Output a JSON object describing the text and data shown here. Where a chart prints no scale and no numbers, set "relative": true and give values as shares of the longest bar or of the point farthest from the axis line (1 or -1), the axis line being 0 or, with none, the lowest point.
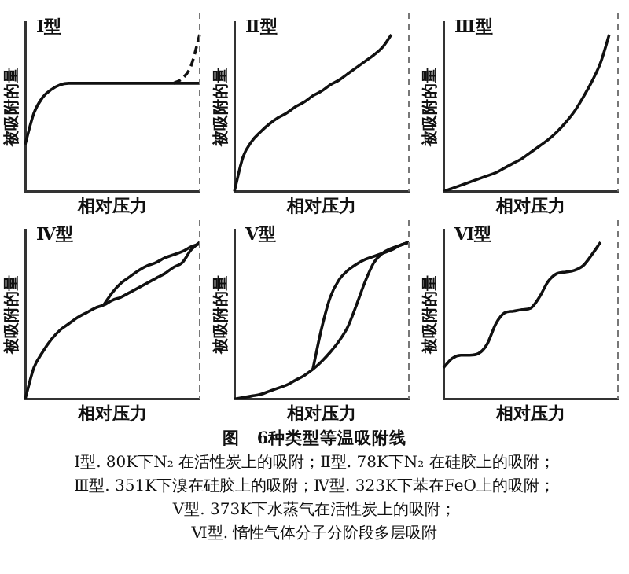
{
  "chart_data": [
    {
      "type": "line",
      "title": "Ⅰ型",
      "xlabel": "相对压力",
      "ylabel": "被吸附的量",
      "relative": true,
      "categories": [
        null,
        null,
        null,
        null,
        null,
        null,
        null,
        null,
        null,
        null,
        null,
        null,
        null,
        null,
        null,
        null,
        null,
        null,
        null,
        null,
        null
      ],
      "series": [
        {
          "color": "#111111",
          "values": [
            0.3,
            0.5,
            0.6,
            0.65,
            0.68,
            0.69,
            0.69,
            0.69,
            0.69,
            0.69,
            0.69,
            0.69,
            0.69,
            0.69,
            0.69,
            0.69,
            0.69,
            0.69,
            0.69,
            0.69,
            0.69
          ]
        },
        {
          "color": "#111111",
          "line_style": "dashed",
          "values": [
            null,
            null,
            null,
            null,
            null,
            null,
            null,
            null,
            null,
            null,
            null,
            null,
            null,
            null,
            null,
            null,
            null,
            0.69,
            0.72,
            0.8,
            1.0
          ]
        }
      ]
    },
    {
      "type": "line",
      "title": "Ⅱ型",
      "xlabel": "相对压力",
      "ylabel": "被吸附的量",
      "relative": true,
      "categories": [
        null,
        null,
        null,
        null,
        null,
        null,
        null,
        null,
        null,
        null,
        null,
        null,
        null,
        null,
        null,
        null,
        null,
        null,
        null,
        null,
        null
      ],
      "series": [
        {
          "color": "#111111",
          "values": [
            0,
            0.22,
            0.32,
            0.38,
            0.43,
            0.47,
            0.5,
            0.54,
            0.57,
            0.61,
            0.64,
            0.68,
            0.71,
            0.75,
            0.79,
            0.83,
            0.87,
            0.92,
            1.0,
            null,
            null
          ]
        }
      ]
    },
    {
      "type": "line",
      "title": "Ⅲ型",
      "xlabel": "相对压力",
      "ylabel": "被吸附的量",
      "relative": true,
      "categories": [
        null,
        null,
        null,
        null,
        null,
        null,
        null,
        null,
        null,
        null,
        null,
        null,
        null,
        null,
        null,
        null,
        null,
        null,
        null,
        null,
        null
      ],
      "series": [
        {
          "color": "#111111",
          "values": [
            0,
            0.02,
            0.04,
            0.06,
            0.08,
            0.1,
            0.12,
            0.15,
            0.18,
            0.21,
            0.25,
            0.29,
            0.33,
            0.38,
            0.44,
            0.51,
            0.6,
            0.7,
            0.82,
            1.0,
            null
          ]
        }
      ]
    },
    {
      "type": "line",
      "title": "Ⅳ型",
      "xlabel": "相对压力",
      "ylabel": "被吸附的量",
      "relative": true,
      "categories": [
        null,
        null,
        null,
        null,
        null,
        null,
        null,
        null,
        null,
        null,
        null,
        null,
        null,
        null,
        null,
        null,
        null,
        null,
        null,
        null,
        null
      ],
      "series": [
        {
          "color": "#111111",
          "values": [
            0,
            0.2,
            0.3,
            0.38,
            0.44,
            0.48,
            0.52,
            0.55,
            0.58,
            0.6,
            0.63,
            0.65,
            0.68,
            0.71,
            0.74,
            0.77,
            0.8,
            0.84,
            0.87,
            0.95,
            1.0
          ]
        },
        {
          "color": "#111111",
          "values": [
            null,
            null,
            null,
            null,
            null,
            null,
            null,
            null,
            null,
            0.6,
            0.68,
            0.74,
            0.78,
            0.82,
            0.85,
            0.87,
            0.9,
            0.92,
            0.94,
            0.97,
            0.99
          ]
        }
      ]
    },
    {
      "type": "line",
      "title": "Ⅴ型",
      "xlabel": "相对压力",
      "ylabel": "被吸附的量",
      "relative": true,
      "categories": [
        null,
        null,
        null,
        null,
        null,
        null,
        null,
        null,
        null,
        null,
        null,
        null,
        null,
        null,
        null,
        null,
        null,
        null,
        null,
        null,
        null
      ],
      "series": [
        {
          "color": "#111111",
          "values": [
            0,
            0.01,
            0.02,
            0.03,
            0.05,
            0.07,
            0.09,
            0.12,
            0.15,
            0.19,
            0.24,
            0.3,
            0.37,
            0.46,
            0.6,
            0.75,
            0.87,
            0.93,
            0.96,
            0.98,
            1.0
          ]
        },
        {
          "color": "#111111",
          "values": [
            null,
            null,
            null,
            null,
            null,
            null,
            null,
            null,
            null,
            0.19,
            0.45,
            0.65,
            0.76,
            0.82,
            0.86,
            0.89,
            0.91,
            0.93,
            0.95,
            0.98,
            1.0
          ]
        }
      ]
    },
    {
      "type": "line",
      "title": "Ⅵ型",
      "xlabel": "相对压力",
      "ylabel": "被吸附的量",
      "relative": true,
      "categories": [
        null,
        null,
        null,
        null,
        null,
        null,
        null,
        null,
        null,
        null,
        null,
        null,
        null,
        null,
        null,
        null,
        null,
        null,
        null,
        null,
        null
      ],
      "series": [
        {
          "color": "#111111",
          "values": [
            0.2,
            0.26,
            0.28,
            0.28,
            0.29,
            0.35,
            0.48,
            0.55,
            0.56,
            0.57,
            0.58,
            0.65,
            0.75,
            0.8,
            0.81,
            0.82,
            0.85,
            0.92,
            1.0,
            null,
            null
          ]
        }
      ]
    },
    {
      "type": "other",
      "title": "图　6种类型等温吸附线",
      "annotations": [
        "Ⅰ型. 80K下N₂ 在活性炭上的吸附；Ⅱ型. 78K下N₂ 在硅胶上的吸附；",
        "Ⅲ型. 351K下溴在硅胶上的吸附；Ⅳ型. 323K下苯在FeO上的吸附；",
        "Ⅴ型. 373K下水蒸气在活性炭上的吸附；",
        "Ⅵ型. 惰性气体分子分阶段多层吸附"
      ]
    }
  ]
}
